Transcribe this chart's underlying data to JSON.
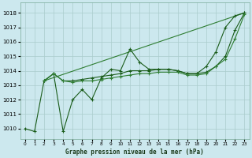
{
  "xlabel": "Graphe pression niveau de la mer (hPa)",
  "ylim": [
    1009.3,
    1018.7
  ],
  "xlim": [
    -0.5,
    23.5
  ],
  "yticks": [
    1010,
    1011,
    1012,
    1013,
    1014,
    1015,
    1016,
    1017,
    1018
  ],
  "xticks": [
    0,
    1,
    2,
    3,
    4,
    5,
    6,
    7,
    8,
    9,
    10,
    11,
    12,
    13,
    14,
    15,
    16,
    17,
    18,
    19,
    20,
    21,
    22,
    23
  ],
  "bg_color": "#cce8ee",
  "grid_color": "#aacccc",
  "dark_green": "#1a5c1a",
  "mid_green": "#2e7d32",
  "line_straight": [
    [
      2,
      1013.3
    ],
    [
      23,
      1018.0
    ]
  ],
  "line_wiggly_x": [
    0,
    1,
    2,
    3,
    4,
    5,
    6,
    7,
    8,
    9,
    10,
    11,
    12,
    13,
    14,
    15,
    16,
    17,
    18,
    19,
    20,
    21,
    22,
    23
  ],
  "line_wiggly_y": [
    1010.0,
    1009.8,
    1013.3,
    1013.8,
    1009.8,
    1012.0,
    1012.7,
    1012.0,
    1013.5,
    1014.1,
    1014.0,
    1015.5,
    1014.6,
    1014.1,
    1014.1,
    1014.1,
    1014.0,
    1013.8,
    1013.8,
    1014.3,
    1015.3,
    1017.0,
    1017.8,
    1018.0
  ],
  "line_mid_x": [
    2,
    3,
    4,
    5,
    6,
    7,
    8,
    9,
    10,
    11,
    12,
    13,
    14,
    15,
    16,
    17,
    18,
    19,
    20,
    21,
    22,
    23
  ],
  "line_mid_y": [
    1013.3,
    1013.8,
    1013.3,
    1013.3,
    1013.4,
    1013.5,
    1013.6,
    1013.7,
    1013.8,
    1014.0,
    1014.0,
    1014.0,
    1014.1,
    1014.1,
    1014.0,
    1013.8,
    1013.8,
    1013.9,
    1014.3,
    1015.0,
    1016.8,
    1018.0
  ],
  "line_flat_x": [
    2,
    3,
    4,
    5,
    6,
    7,
    8,
    9,
    10,
    11,
    12,
    13,
    14,
    15,
    16,
    17,
    18,
    19,
    20,
    21,
    22,
    23
  ],
  "line_flat_y": [
    1013.3,
    1013.8,
    1013.3,
    1013.2,
    1013.3,
    1013.3,
    1013.4,
    1013.5,
    1013.6,
    1013.7,
    1013.8,
    1013.8,
    1013.9,
    1013.9,
    1013.9,
    1013.7,
    1013.7,
    1013.8,
    1014.3,
    1014.8,
    1016.2,
    1017.9
  ]
}
